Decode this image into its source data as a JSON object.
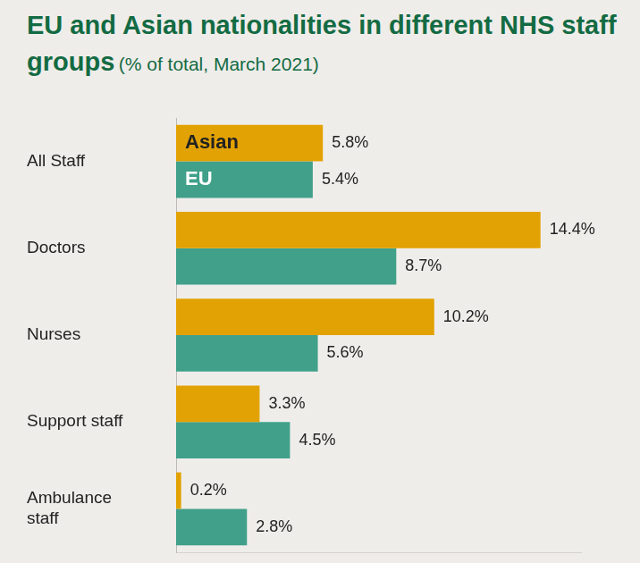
{
  "chart_data": {
    "type": "bar",
    "title": "EU and Asian nationalities in different NHS staff groups",
    "subtitle": "(% of total, March 2021)",
    "orientation": "horizontal",
    "categories": [
      "All Staff",
      "Doctors",
      "Nurses",
      "Support staff",
      "Ambulance staff"
    ],
    "series": [
      {
        "name": "Asian",
        "color": "#e3a203",
        "values": [
          5.8,
          14.4,
          10.2,
          3.3,
          0.2
        ],
        "value_labels": [
          "5.8%",
          "14.4%",
          "10.2%",
          "3.3%",
          "0.2%"
        ]
      },
      {
        "name": "EU",
        "color": "#40a08a",
        "values": [
          5.4,
          8.7,
          5.6,
          4.5,
          2.8
        ],
        "value_labels": [
          "5.4%",
          "8.7%",
          "5.6%",
          "4.5%",
          "2.8%"
        ]
      }
    ],
    "xlim": [
      0,
      16
    ],
    "grid": false,
    "data_labels": true,
    "tick_labels": "y"
  }
}
